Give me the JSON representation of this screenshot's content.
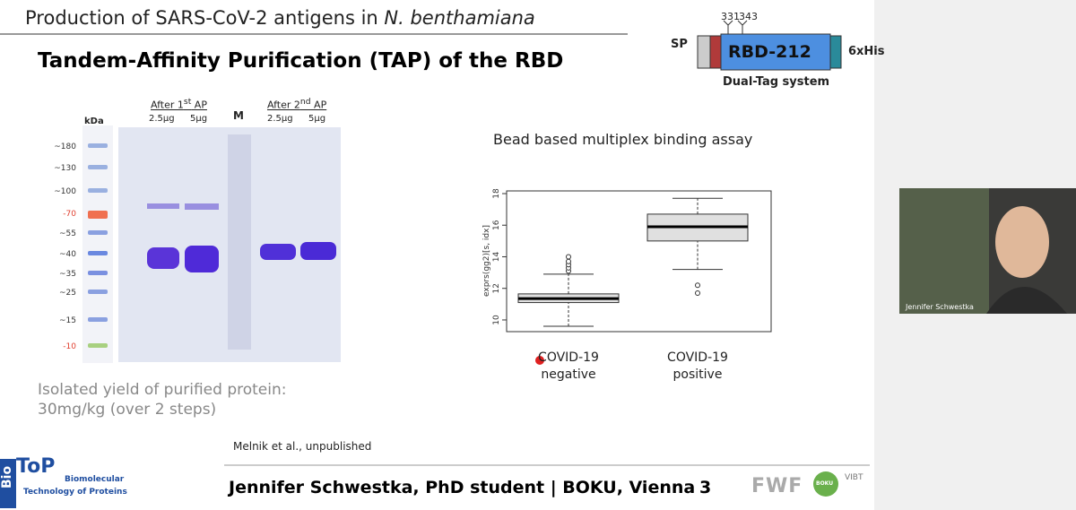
{
  "header": {
    "title": "Production of SARS-CoV-2 antigens in ",
    "title_italic": "N. benthamiana"
  },
  "slide": {
    "subtitle": "Tandem-Affinity Purification (TAP) of the RBD",
    "yield": [
      "Isolated yield of purified protein:",
      "30mg/kg (over 2 steps)"
    ],
    "citation": "Melnik et al., unpublished",
    "footer": "Jennifer Schwestka, PhD student | BOKU, Vienna",
    "page": "3"
  },
  "construct": {
    "sp": "SP",
    "sites": [
      "331",
      "343"
    ],
    "domain": "RBD-212",
    "tag": "6xHis",
    "caption": "Dual-Tag system"
  },
  "gel": {
    "unit": "kDa",
    "markers": [
      "~180",
      "~130",
      "~100",
      "-70",
      "~55",
      "~40",
      "~35",
      "~25",
      "~15",
      "-10"
    ],
    "group1": {
      "label": "After 1",
      "sup": "st",
      "rest": " AP"
    },
    "group2": {
      "label": "After 2",
      "sup": "nd",
      "rest": " AP"
    },
    "lanes": [
      "2.5µg",
      "5µg",
      "M",
      "2.5µg",
      "5µg"
    ]
  },
  "logos": {
    "bio": "Bio",
    "top": "ToP",
    "line1": "Biomolecular",
    "line2": "Technology of Proteins",
    "fwf": "FWF",
    "boku": "BOKU",
    "vibt": "VIBT"
  },
  "video": {
    "participant": "Jennifer Schwestka"
  },
  "chart_data": {
    "type": "box",
    "title": "Bead based multiplex binding assay",
    "y_label": "exprs(gg2)[s, idx]",
    "categories": [
      "COVID-19 negative",
      "COVID-19 positive"
    ],
    "ylim": [
      9.26,
      18.17
    ],
    "yticks": [
      10,
      12,
      14,
      16,
      18
    ],
    "boxes": [
      {
        "whisker_low": 9.6,
        "q1": 11.1,
        "median": 11.35,
        "q3": 11.65,
        "whisker_high": 12.9,
        "outliers": [
          13.1,
          13.3,
          13.5,
          13.7,
          14.0
        ]
      },
      {
        "whisker_low": 13.2,
        "q1": 15.0,
        "median": 15.9,
        "q3": 16.7,
        "whisker_high": 17.7,
        "outliers": [
          12.2,
          11.7
        ]
      }
    ]
  }
}
